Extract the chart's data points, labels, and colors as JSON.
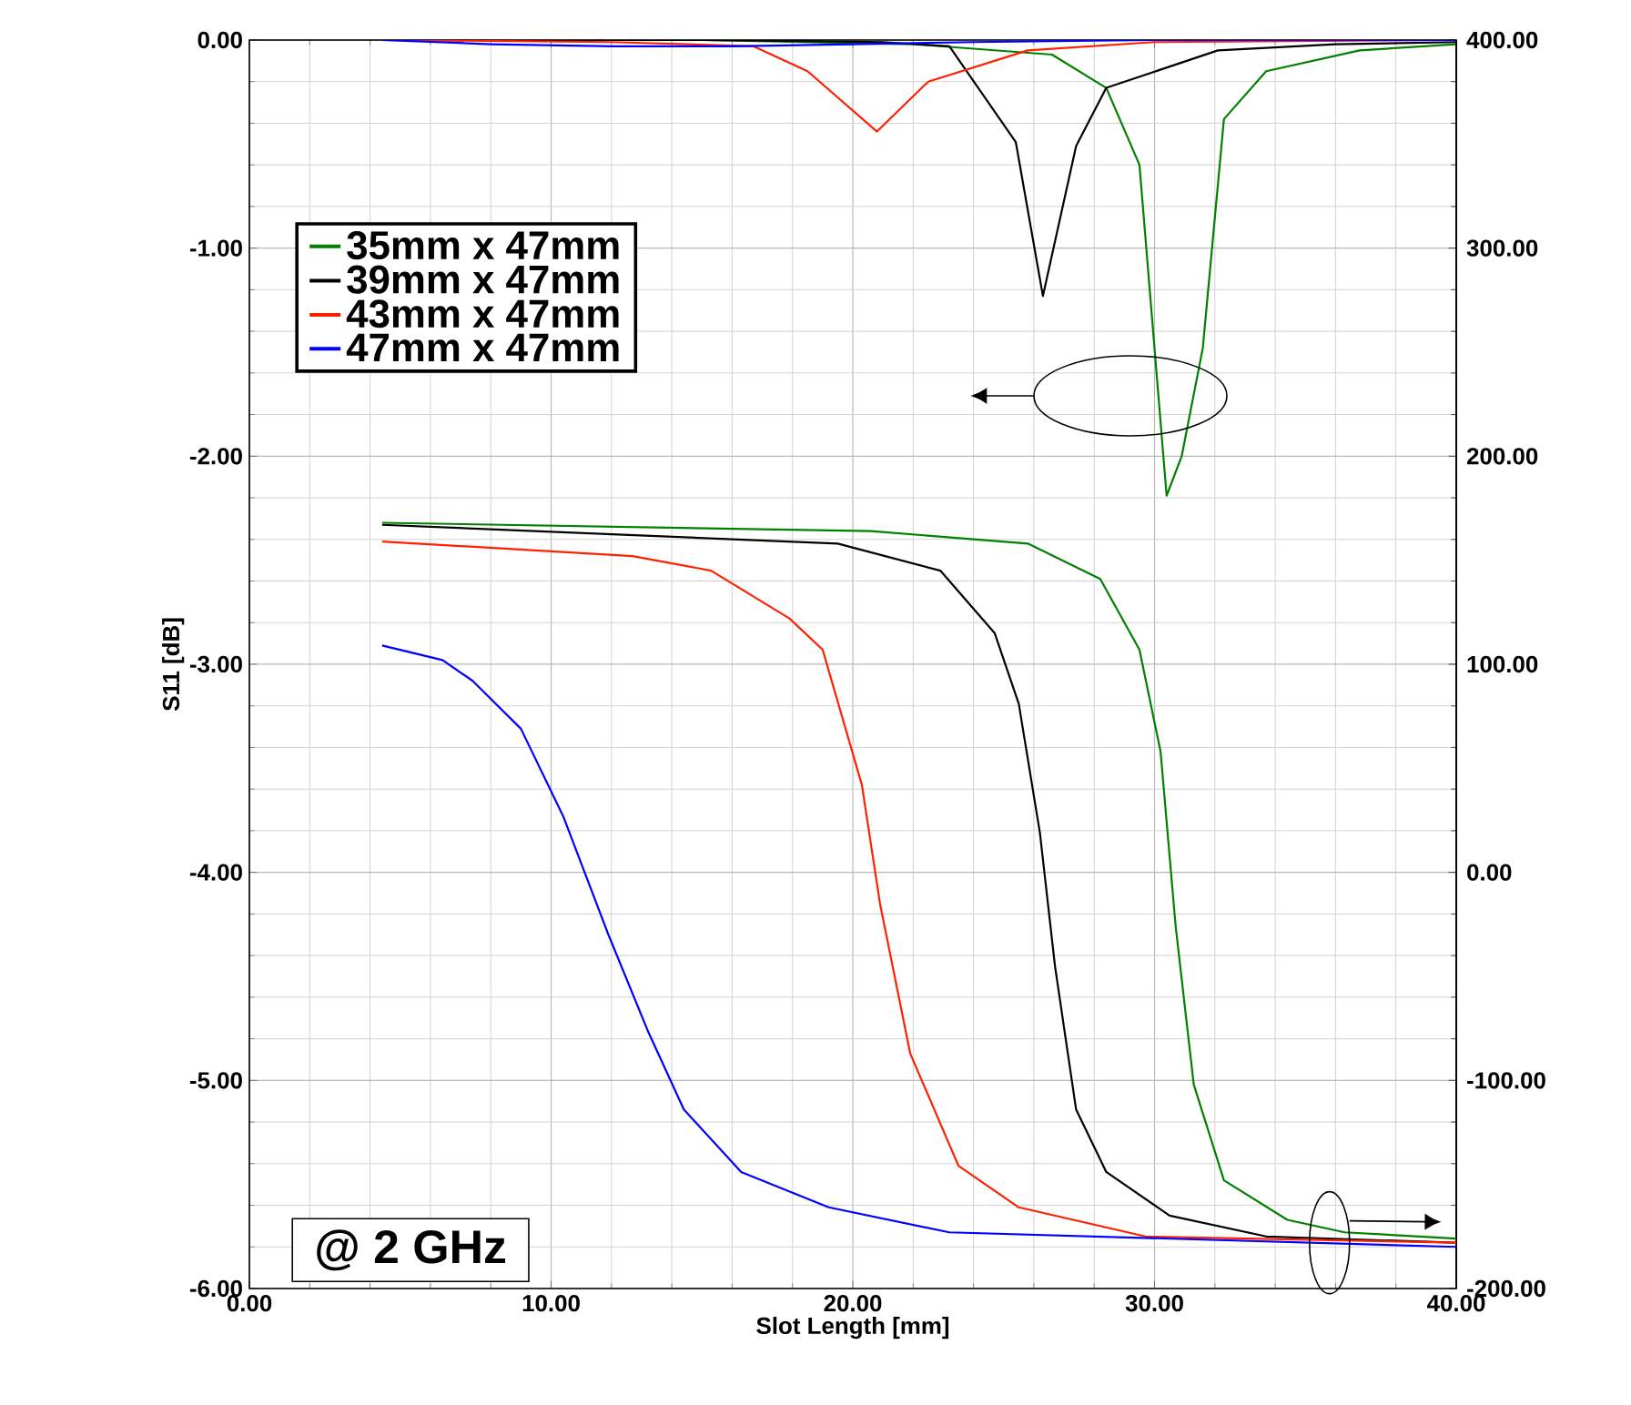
{
  "chart_data": {
    "type": "line",
    "xlabel": "Slot Length [mm]",
    "ylabel": "S11 [dB]",
    "xlim": [
      0,
      40
    ],
    "xticks": [
      {
        "value": 0,
        "label": "0.00"
      },
      {
        "value": 10,
        "label": "10.00"
      },
      {
        "value": 20,
        "label": "20.00"
      },
      {
        "value": 30,
        "label": "30.00"
      },
      {
        "value": 40,
        "label": "40.00"
      }
    ],
    "ylim": [
      -6,
      0
    ],
    "yticks": [
      {
        "value": -6,
        "label": "-6.00"
      },
      {
        "value": -5,
        "label": "-5.00"
      },
      {
        "value": -4,
        "label": "-4.00"
      },
      {
        "value": -3,
        "label": "-3.00"
      },
      {
        "value": -2,
        "label": "-2.00"
      },
      {
        "value": -1,
        "label": "-1.00"
      },
      {
        "value": 0,
        "label": "0.00"
      }
    ],
    "y2lim": [
      -200,
      400
    ],
    "y2ticks": [
      {
        "value": -200,
        "label": "-200.00"
      },
      {
        "value": -100,
        "label": "-100.00"
      },
      {
        "value": 0,
        "label": "0.00"
      },
      {
        "value": 100,
        "label": "100.00"
      },
      {
        "value": 200,
        "label": "200.00"
      },
      {
        "value": 300,
        "label": "300.00"
      },
      {
        "value": 400,
        "label": "400.00"
      }
    ],
    "grid": true,
    "legend": "top left",
    "annotations": [
      "@ 2 GHz"
    ],
    "series": [
      {
        "name": "35mm x 47mm",
        "color": "#008000",
        "x": [
          4.4,
          15,
          22,
          26.6,
          28.4,
          29.5,
          30.4,
          30.9,
          31.6,
          32.3,
          33.7,
          36.8,
          40
        ],
        "values": [
          0,
          0,
          -0.02,
          -0.07,
          -0.23,
          -0.6,
          -2.19,
          -2.0,
          -1.48,
          -0.38,
          -0.15,
          -0.05,
          -0.02
        ]
      },
      {
        "name": "39mm x 47mm",
        "color": "#000000",
        "x": [
          4.4,
          15,
          21,
          23.2,
          25.4,
          26.3,
          27.4,
          28.4,
          32.1,
          36,
          40
        ],
        "values": [
          0,
          0,
          -0.01,
          -0.03,
          -0.49,
          -1.23,
          -0.51,
          -0.23,
          -0.05,
          -0.02,
          -0.01
        ]
      },
      {
        "name": "43mm x 47mm",
        "color": "#ff2000",
        "x": [
          4.4,
          12,
          16.7,
          18.5,
          20.8,
          22.5,
          25.8,
          30,
          40
        ],
        "values": [
          0,
          -0.01,
          -0.03,
          -0.15,
          -0.44,
          -0.2,
          -0.05,
          -0.01,
          0
        ]
      },
      {
        "name": "47mm x 47mm",
        "color": "#0000ff",
        "x": [
          4.4,
          8,
          12,
          16,
          20,
          24,
          30,
          40
        ],
        "values": [
          0,
          -0.02,
          -0.03,
          -0.03,
          -0.02,
          -0.01,
          0,
          0
        ]
      },
      {
        "color": "#008000",
        "axis": "y2",
        "x": [
          4.4,
          20.6,
          25.8,
          28.2,
          29.5,
          30.2,
          30.7,
          31.3,
          32.3,
          34.4,
          36.3,
          40
        ],
        "values": [
          168,
          164,
          158,
          141,
          107,
          58,
          -26,
          -102,
          -148,
          -167,
          -173,
          -176
        ]
      },
      {
        "color": "#000000",
        "axis": "y2",
        "x": [
          4.4,
          19.5,
          22.9,
          24.7,
          25.5,
          26.2,
          26.7,
          27.4,
          28.4,
          30.5,
          33.7,
          40
        ],
        "values": [
          167,
          158,
          145,
          115,
          81,
          19,
          -45,
          -114,
          -144,
          -165,
          -175,
          -178
        ]
      },
      {
        "color": "#ff2000",
        "axis": "y2",
        "x": [
          4.4,
          12.7,
          15.3,
          17.9,
          19,
          20.3,
          20.9,
          21.9,
          23.5,
          25.5,
          29.7,
          40
        ],
        "values": [
          159,
          152,
          145,
          122,
          107,
          42,
          -15,
          -87,
          -141,
          -161,
          -175,
          -178
        ]
      },
      {
        "color": "#0000ff",
        "axis": "y2",
        "x": [
          4.4,
          6.4,
          7.4,
          9,
          10.4,
          11.9,
          13.2,
          14.4,
          16.3,
          19.2,
          23.2,
          40
        ],
        "values": [
          109,
          102,
          92,
          69,
          27,
          -30,
          -76,
          -114,
          -144,
          -161,
          -173,
          -180
        ]
      }
    ]
  }
}
